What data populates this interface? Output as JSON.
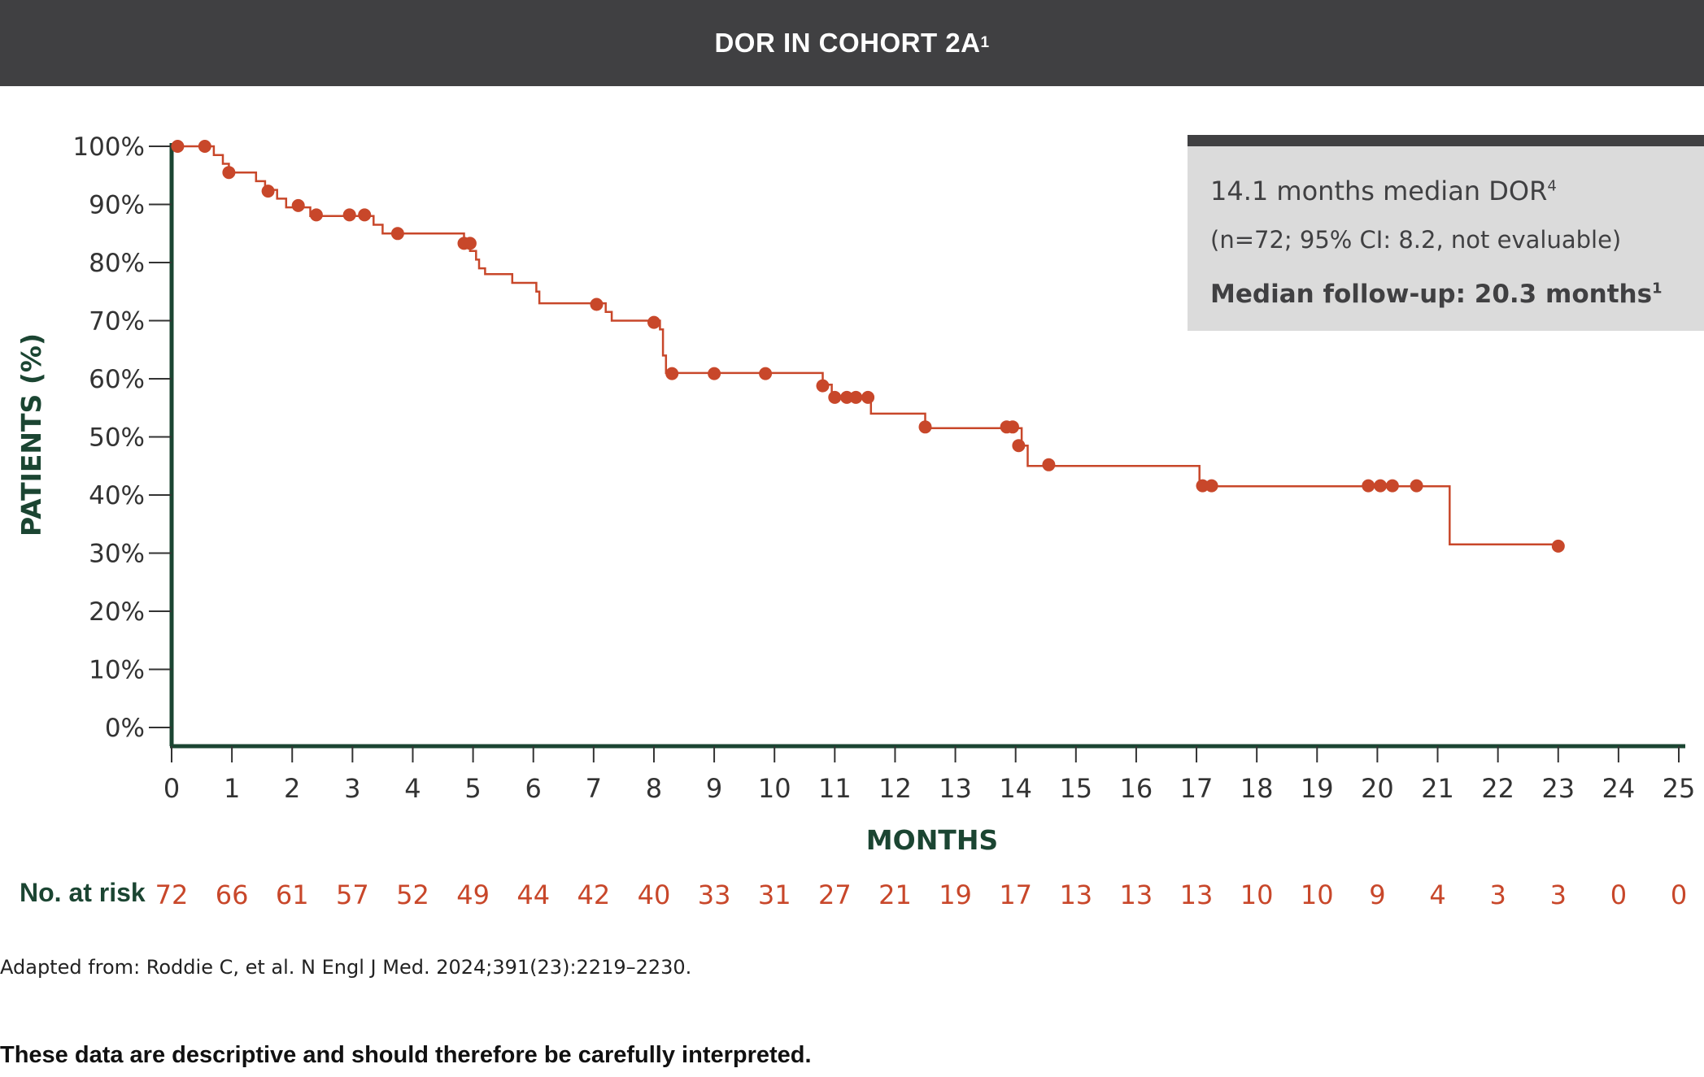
{
  "header": {
    "title": "DOR IN COHORT 2A",
    "title_sup": "1"
  },
  "info_box": {
    "line1": "14.1 months median DOR",
    "line1_sup": "4",
    "line2": "(n=72; 95% CI: 8.2, not evaluable)",
    "line3": "Median follow-up: 20.3 months",
    "line3_sup": "1"
  },
  "risk_table": {
    "label": "No. at risk",
    "values": [
      "72",
      "66",
      "61",
      "57",
      "52",
      "49",
      "44",
      "42",
      "40",
      "33",
      "31",
      "27",
      "21",
      "19",
      "17",
      "13",
      "13",
      "13",
      "10",
      "10",
      "9",
      "4",
      "3",
      "3",
      "0",
      "0"
    ]
  },
  "footnote": "Adapted from: Roddie C, et al. N Engl J Med. 2024;391(23):2219–2230.",
  "disclaimer": "These data are descriptive and should therefore be carefully interpreted.",
  "colors": {
    "curve": "#c8472a",
    "axis": "#1b4532",
    "header_bg": "#404042",
    "info_bg": "#dbdbdb"
  },
  "chart_data": {
    "type": "line",
    "subtype": "kaplan-meier step curve",
    "xlabel": "MONTHS",
    "ylabel": "PATIENTS (%)",
    "xlim": [
      0,
      25
    ],
    "ylim": [
      0,
      100
    ],
    "x_ticks": [
      "0",
      "1",
      "2",
      "3",
      "4",
      "5",
      "6",
      "7",
      "8",
      "9",
      "10",
      "11",
      "12",
      "13",
      "14",
      "15",
      "16",
      "17",
      "18",
      "19",
      "20",
      "21",
      "22",
      "23",
      "24",
      "25"
    ],
    "y_ticks": [
      "0%",
      "10%",
      "20%",
      "30%",
      "40%",
      "50%",
      "60%",
      "70%",
      "80%",
      "90%",
      "100%"
    ],
    "grid": false,
    "series": [
      {
        "steps": [
          [
            0,
            100
          ],
          [
            0.7,
            98.5
          ],
          [
            0.85,
            97
          ],
          [
            0.95,
            95.5
          ],
          [
            1.4,
            94
          ],
          [
            1.55,
            92.5
          ],
          [
            1.75,
            91
          ],
          [
            1.9,
            89.5
          ],
          [
            2.3,
            88
          ],
          [
            3.35,
            86.5
          ],
          [
            3.5,
            85
          ],
          [
            4.85,
            83.5
          ],
          [
            4.95,
            82
          ],
          [
            5.05,
            80.5
          ],
          [
            5.1,
            79
          ],
          [
            5.2,
            78
          ],
          [
            5.65,
            76.5
          ],
          [
            6.05,
            75
          ],
          [
            6.1,
            73
          ],
          [
            7.2,
            71.5
          ],
          [
            7.3,
            70
          ],
          [
            8.1,
            68.5
          ],
          [
            8.15,
            64
          ],
          [
            8.2,
            61
          ],
          [
            10.8,
            59
          ],
          [
            10.95,
            57
          ],
          [
            11.6,
            54
          ],
          [
            12.5,
            51.5
          ],
          [
            14.1,
            48.5
          ],
          [
            14.2,
            45
          ],
          [
            17.05,
            41.5
          ],
          [
            21.2,
            31.5
          ],
          [
            23,
            31.5
          ]
        ],
        "censored": [
          [
            0.1,
            100
          ],
          [
            0.55,
            100
          ],
          [
            0.95,
            95.5
          ],
          [
            1.6,
            92.3
          ],
          [
            2.1,
            89.8
          ],
          [
            2.4,
            88.2
          ],
          [
            2.95,
            88.2
          ],
          [
            3.2,
            88.2
          ],
          [
            3.75,
            85
          ],
          [
            4.85,
            83.3
          ],
          [
            4.95,
            83.3
          ],
          [
            7.05,
            72.8
          ],
          [
            8.0,
            69.7
          ],
          [
            8.3,
            60.9
          ],
          [
            9.0,
            60.9
          ],
          [
            9.85,
            60.9
          ],
          [
            10.8,
            58.8
          ],
          [
            11.0,
            56.8
          ],
          [
            11.2,
            56.8
          ],
          [
            11.35,
            56.8
          ],
          [
            11.55,
            56.8
          ],
          [
            12.5,
            51.7
          ],
          [
            13.85,
            51.7
          ],
          [
            13.95,
            51.7
          ],
          [
            14.05,
            48.5
          ],
          [
            14.55,
            45.2
          ],
          [
            17.1,
            41.6
          ],
          [
            17.25,
            41.6
          ],
          [
            19.85,
            41.6
          ],
          [
            20.05,
            41.6
          ],
          [
            20.25,
            41.6
          ],
          [
            20.65,
            41.6
          ],
          [
            23.0,
            31.2
          ]
        ]
      }
    ]
  }
}
